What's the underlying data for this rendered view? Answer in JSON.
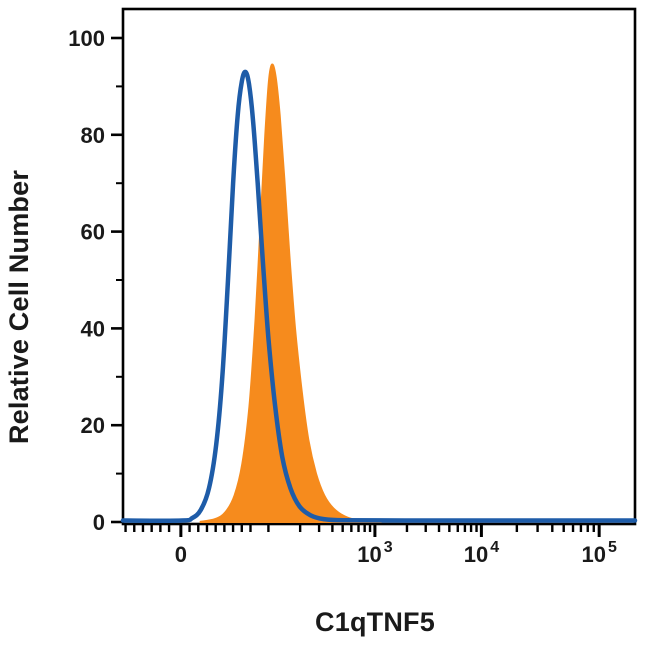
{
  "chart_data": {
    "type": "area",
    "title": "",
    "xlabel": "C1qTNF5",
    "ylabel": "Relative Cell Number",
    "x_scale": "biexponential-log",
    "ylim": [
      0,
      105
    ],
    "grid": false,
    "legend": "none",
    "yticks_major": [
      0,
      20,
      40,
      60,
      80,
      100
    ],
    "yticks_minor": [
      10,
      30,
      50,
      70,
      90
    ],
    "xticks": [
      {
        "base": "0",
        "exp": "",
        "frac": 0.113
      },
      {
        "base": "10",
        "exp": "3",
        "frac": 0.492
      },
      {
        "base": "10",
        "exp": "4",
        "frac": 0.7
      },
      {
        "base": "10",
        "exp": "5",
        "frac": 0.93
      }
    ],
    "series": [
      {
        "name": "orange-filled-histogram",
        "color": "#F68B1D",
        "fill": true,
        "stroke_width": 2,
        "peak": {
          "frac": 0.291,
          "value": 94.5
        },
        "points": [
          [
            0.15,
            0.0
          ],
          [
            0.18,
            0.6
          ],
          [
            0.2,
            2.0
          ],
          [
            0.218,
            5.5
          ],
          [
            0.233,
            12.0
          ],
          [
            0.247,
            24.0
          ],
          [
            0.259,
            42.0
          ],
          [
            0.269,
            62.0
          ],
          [
            0.278,
            80.0
          ],
          [
            0.285,
            91.0
          ],
          [
            0.291,
            94.5
          ],
          [
            0.298,
            92.0
          ],
          [
            0.306,
            84.0
          ],
          [
            0.315,
            71.0
          ],
          [
            0.325,
            55.0
          ],
          [
            0.336,
            40.0
          ],
          [
            0.349,
            27.0
          ],
          [
            0.362,
            17.0
          ],
          [
            0.377,
            10.0
          ],
          [
            0.393,
            5.5
          ],
          [
            0.411,
            2.8
          ],
          [
            0.432,
            1.2
          ],
          [
            0.455,
            0.4
          ],
          [
            0.48,
            0.1
          ],
          [
            0.505,
            0.0
          ]
        ]
      },
      {
        "name": "blue-open-histogram",
        "color": "#1E5CA8",
        "fill": false,
        "stroke_width": 4.5,
        "peak": {
          "frac": 0.239,
          "value": 93
        },
        "points": [
          [
            0.0,
            0.3
          ],
          [
            0.115,
            0.3
          ],
          [
            0.135,
            0.8
          ],
          [
            0.152,
            2.5
          ],
          [
            0.168,
            7.0
          ],
          [
            0.182,
            16.0
          ],
          [
            0.194,
            30.0
          ],
          [
            0.205,
            50.0
          ],
          [
            0.215,
            70.0
          ],
          [
            0.224,
            84.0
          ],
          [
            0.232,
            91.0
          ],
          [
            0.239,
            93.0
          ],
          [
            0.246,
            90.5
          ],
          [
            0.254,
            83.0
          ],
          [
            0.263,
            70.0
          ],
          [
            0.273,
            54.0
          ],
          [
            0.284,
            38.0
          ],
          [
            0.297,
            24.0
          ],
          [
            0.311,
            13.5
          ],
          [
            0.327,
            7.0
          ],
          [
            0.345,
            3.2
          ],
          [
            0.366,
            1.4
          ],
          [
            0.392,
            0.6
          ],
          [
            0.43,
            0.35
          ],
          [
            0.55,
            0.3
          ],
          [
            0.75,
            0.3
          ],
          [
            1.0,
            0.3
          ]
        ]
      }
    ]
  },
  "colors": {
    "background": "#ffffff",
    "axis": "#000000",
    "blue": "#1E5CA8",
    "orange": "#F68B1D"
  }
}
